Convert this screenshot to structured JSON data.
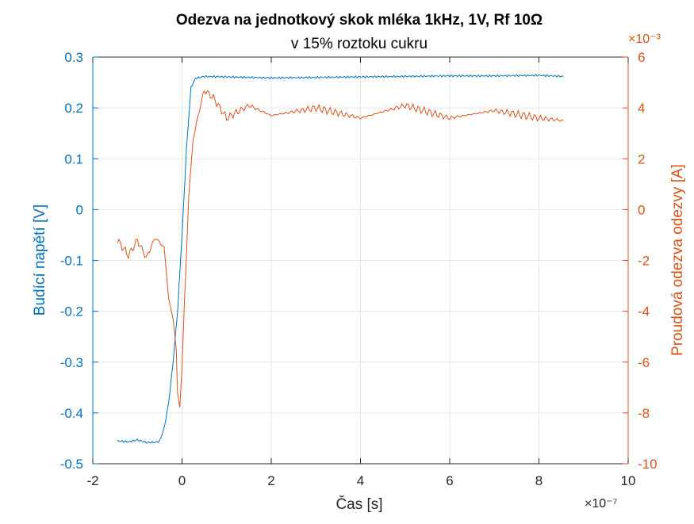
{
  "chart_data": {
    "type": "line",
    "title": "Odezva na jednotkový skok mléka 1kHz, 1V, Rf 10Ω",
    "subtitle": "v 15% roztoku cukru",
    "xlabel": "Čas [s]",
    "x_exponent": "×10⁻⁷",
    "xlim": [
      -2e-07,
      1e-06
    ],
    "x_ticks": [
      -2e-07,
      0,
      2e-07,
      4e-07,
      6e-07,
      8e-07,
      1e-06
    ],
    "x_tick_labels": [
      "-2",
      "0",
      "2",
      "4",
      "6",
      "8",
      "10"
    ],
    "y_left": {
      "label": "Budící napětí [V]",
      "lim": [
        -0.5,
        0.3
      ],
      "ticks": [
        -0.5,
        -0.4,
        -0.3,
        -0.2,
        -0.1,
        0,
        0.1,
        0.2,
        0.3
      ],
      "tick_labels": [
        "-0.5",
        "-0.4",
        "-0.3",
        "-0.2",
        "-0.1",
        "0",
        "0.1",
        "0.2",
        "0.3"
      ],
      "color": "#0072BD"
    },
    "y_right": {
      "label": "Proudová odezva odezvy [A]",
      "exponent": "×10⁻³",
      "lim": [
        -0.01,
        0.006
      ],
      "ticks": [
        -0.01,
        -0.008,
        -0.006,
        -0.004,
        -0.002,
        0,
        0.002,
        0.004,
        0.006
      ],
      "tick_labels": [
        "-10",
        "-8",
        "-6",
        "-4",
        "-2",
        "0",
        "2",
        "4",
        "6"
      ],
      "color": "#D95319"
    },
    "grid": true,
    "series": [
      {
        "axis": "left",
        "color": "#0072BD",
        "x": [
          -1.45e-07,
          -1.2e-07,
          -1e-07,
          -8e-08,
          -6e-08,
          -5e-08,
          -4e-08,
          -3e-08,
          -2e-08,
          -1e-08,
          0,
          1e-08,
          2e-08,
          3e-08,
          5e-08,
          1e-07,
          2e-07,
          3e-07,
          4e-07,
          5e-07,
          6e-07,
          7e-07,
          8e-07,
          8.55e-07
        ],
        "y": [
          -0.455,
          -0.457,
          -0.453,
          -0.458,
          -0.458,
          -0.455,
          -0.43,
          -0.38,
          -0.3,
          -0.2,
          -0.05,
          0.12,
          0.24,
          0.258,
          0.262,
          0.261,
          0.259,
          0.26,
          0.261,
          0.262,
          0.263,
          0.263,
          0.264,
          0.262
        ]
      },
      {
        "axis": "right",
        "color": "#D95319",
        "x": [
          -1.45e-07,
          -1.2e-07,
          -1e-07,
          -8e-08,
          -6e-08,
          -4e-08,
          -3e-08,
          -2e-08,
          -1.3e-08,
          -1e-08,
          -5e-09,
          0,
          5e-09,
          1e-08,
          1.5e-08,
          2.5e-08,
          4e-08,
          5e-08,
          7e-08,
          1e-07,
          1.5e-07,
          2e-07,
          3e-07,
          4e-07,
          5e-07,
          6e-07,
          7e-07,
          8e-07,
          8.55e-07
        ],
        "y": [
          -0.0012,
          -0.0018,
          -0.0012,
          -0.0019,
          -0.0011,
          -0.0015,
          -0.0035,
          -0.0043,
          -0.0055,
          -0.0072,
          -0.0078,
          -0.0062,
          -0.0038,
          -0.0018,
          0.0005,
          0.0028,
          0.004,
          0.0047,
          0.0044,
          0.0036,
          0.0041,
          0.0037,
          0.004,
          0.0036,
          0.0041,
          0.0036,
          0.0039,
          0.0036,
          0.0035
        ]
      }
    ]
  }
}
